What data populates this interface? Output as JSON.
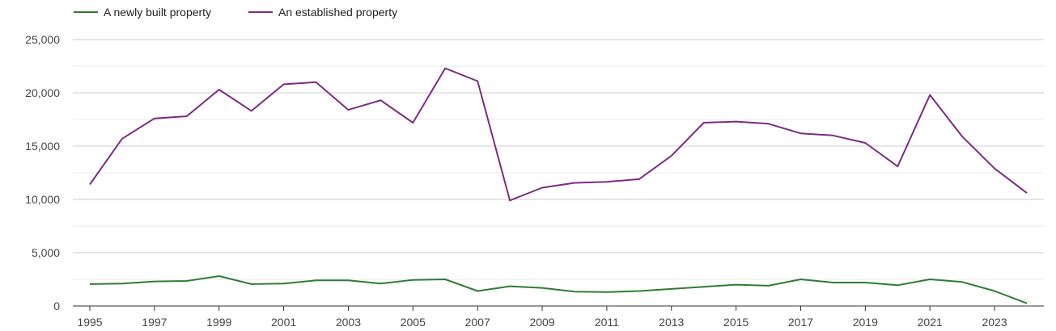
{
  "chart_data": {
    "type": "line",
    "x": [
      1995,
      1996,
      1997,
      1998,
      1999,
      2000,
      2001,
      2002,
      2003,
      2004,
      2005,
      2006,
      2007,
      2008,
      2009,
      2010,
      2011,
      2012,
      2013,
      2014,
      2015,
      2016,
      2017,
      2018,
      2019,
      2020,
      2021,
      2022,
      2023,
      2024
    ],
    "series": [
      {
        "name": "A newly built property",
        "color": "#2e7d32",
        "values": [
          2050,
          2100,
          2300,
          2350,
          2800,
          2050,
          2100,
          2400,
          2400,
          2100,
          2450,
          2500,
          1400,
          1850,
          1700,
          1350,
          1300,
          1400,
          1600,
          1800,
          2000,
          1900,
          2500,
          2200,
          2200,
          1950,
          2500,
          2250,
          1400,
          250
        ]
      },
      {
        "name": "An established property",
        "color": "#7b2b82",
        "values": [
          11400,
          15700,
          17600,
          17800,
          20300,
          18300,
          20800,
          21000,
          18400,
          19300,
          17200,
          22300,
          21100,
          9900,
          11100,
          11550,
          11650,
          11900,
          14100,
          17200,
          17300,
          17100,
          16200,
          16000,
          15300,
          13100,
          19800,
          15900,
          12900,
          10600
        ]
      }
    ],
    "y_ticks": [
      "0",
      "5,000",
      "10,000",
      "15,000",
      "20,000",
      "25,000"
    ],
    "x_ticks": [
      "1995",
      "1997",
      "1999",
      "2001",
      "2003",
      "2005",
      "2007",
      "2009",
      "2011",
      "2013",
      "2015",
      "2017",
      "2019",
      "2021",
      "2023"
    ],
    "ylim": [
      0,
      25000
    ],
    "grid": true,
    "legend": "top-left"
  }
}
